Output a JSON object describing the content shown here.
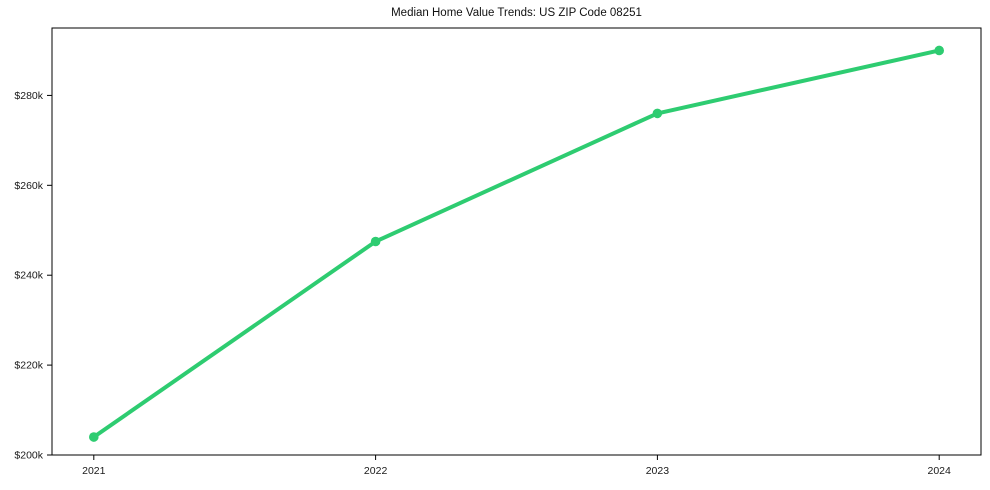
{
  "chart_data": {
    "type": "line",
    "title": "Median Home Value Trends: US ZIP Code 08251",
    "x": [
      2021,
      2022,
      2023,
      2024
    ],
    "x_tick_labels": [
      "2021",
      "2022",
      "2023",
      "2024"
    ],
    "series": [
      {
        "name": "Median Home Value",
        "values": [
          204000,
          247500,
          276000,
          290000
        ]
      }
    ],
    "y_ticks": [
      200000,
      220000,
      240000,
      260000,
      280000
    ],
    "y_tick_labels": [
      "$200k",
      "$220k",
      "$240k",
      "$260k",
      "$280k"
    ],
    "ylim": [
      200000,
      295000
    ],
    "xlabel": "",
    "ylabel": "",
    "grid": false,
    "legend": "none",
    "line_color": "#2ecc71",
    "marker": "circle",
    "axis_color": "#000000",
    "tick_color": "#000000",
    "text_color": "#1a1a1a",
    "background_color": "#ffffff"
  }
}
